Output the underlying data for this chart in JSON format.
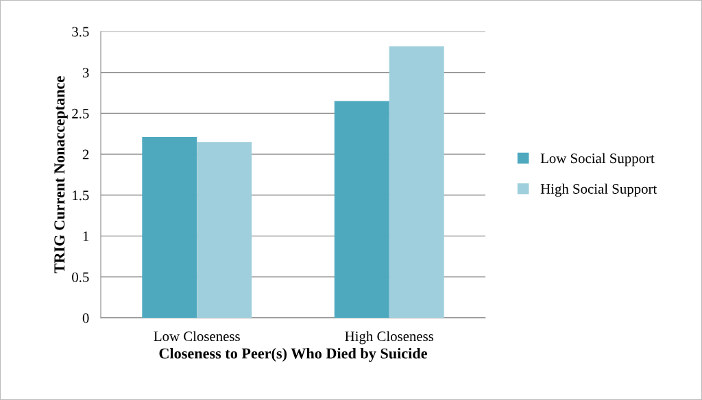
{
  "chart_data": {
    "type": "bar",
    "xlabel": "Closeness to Peer(s) Who Died by Suicide",
    "ylabel": "TRIG Current Nonacceptance",
    "categories": [
      "Low Closeness",
      "High Closeness"
    ],
    "series": [
      {
        "name": "Low Social Support",
        "color": "#4ea9bf",
        "values": [
          2.21,
          2.65
        ]
      },
      {
        "name": "High Social Support",
        "color": "#9fcfdc",
        "values": [
          2.15,
          3.32
        ]
      }
    ],
    "ylim": [
      0,
      3.5
    ],
    "yticks": [
      0,
      0.5,
      1,
      1.5,
      2,
      2.5,
      3,
      3.5
    ],
    "grid": "y",
    "legend": "right"
  }
}
